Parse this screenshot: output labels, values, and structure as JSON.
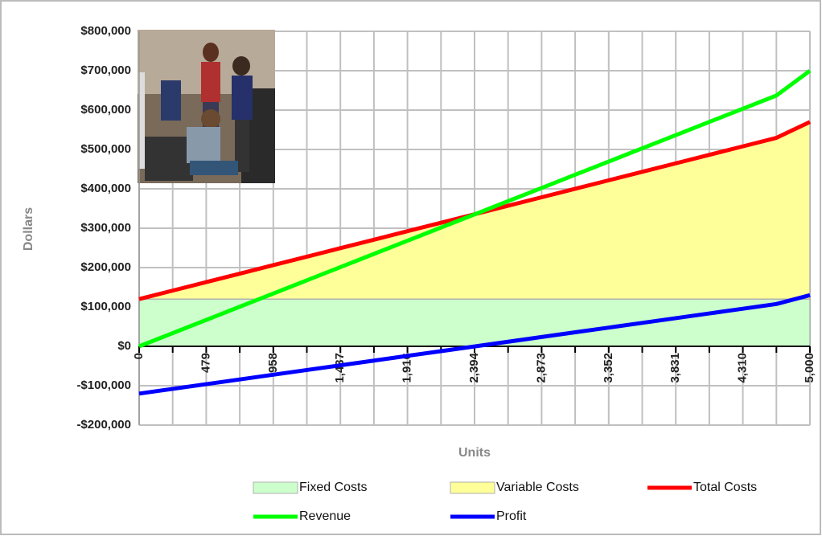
{
  "chart_data": {
    "type": "line",
    "stacked_areas": true,
    "y_axis_title": "Dollars",
    "x_axis_title": "Units",
    "categories": [
      "0",
      null,
      "479",
      null,
      "958",
      null,
      "1,437",
      null,
      "1,916",
      null,
      "2,394",
      null,
      "2,873",
      null,
      "3,352",
      null,
      "3,831",
      null,
      "4,310",
      null,
      "5,000"
    ],
    "ylim": [
      -200000,
      800000
    ],
    "yticks": [
      {
        "value": -200000,
        "label": "-$200,000"
      },
      {
        "value": -100000,
        "label": "-$100,000"
      },
      {
        "value": 0,
        "label": "$0"
      },
      {
        "value": 100000,
        "label": "$100,000"
      },
      {
        "value": 200000,
        "label": "$200,000"
      },
      {
        "value": 300000,
        "label": "$300,000"
      },
      {
        "value": 400000,
        "label": "$400,000"
      },
      {
        "value": 500000,
        "label": "$500,000"
      },
      {
        "value": 600000,
        "label": "$600,000"
      },
      {
        "value": 700000,
        "label": "$700,000"
      },
      {
        "value": 800000,
        "label": "$800,000"
      }
    ],
    "grid": true,
    "series": [
      {
        "name": "Fixed Costs",
        "kind": "area",
        "color": "#ccffcc",
        "values": [
          120000,
          120000,
          120000,
          120000,
          120000,
          120000,
          120000,
          120000,
          120000,
          120000,
          120000,
          120000,
          120000,
          120000,
          120000,
          120000,
          120000,
          120000,
          120000,
          120000,
          120000
        ]
      },
      {
        "name": "Variable Costs",
        "kind": "area",
        "color": "#ffff99",
        "values": [
          0,
          21555,
          43110,
          64665,
          86220,
          107775,
          129330,
          150885,
          172440,
          193995,
          215460,
          237060,
          258570,
          280170,
          301680,
          323280,
          344790,
          366390,
          387900,
          409500,
          450000
        ]
      },
      {
        "name": "Total Costs",
        "kind": "line",
        "color": "#ff0000",
        "values": [
          120000,
          141555,
          163110,
          184665,
          206220,
          227775,
          249330,
          270885,
          292440,
          313995,
          335460,
          357060,
          378570,
          400170,
          421680,
          443280,
          464790,
          486390,
          507900,
          529500,
          570000
        ]
      },
      {
        "name": "Revenue",
        "kind": "line",
        "color": "#00ff00",
        "values": [
          0,
          33530,
          67060,
          100590,
          134120,
          167650,
          201180,
          234710,
          268240,
          301770,
          335160,
          368760,
          402220,
          435820,
          469280,
          502880,
          536340,
          569940,
          603400,
          637000,
          700000
        ]
      },
      {
        "name": "Profit",
        "kind": "line",
        "color": "#0000ff",
        "values": [
          -120000,
          -108025,
          -96050,
          -84075,
          -72100,
          -60125,
          -48150,
          -36175,
          -24200,
          -12225,
          -280,
          11700,
          23650,
          35650,
          47600,
          59600,
          71550,
          83550,
          95500,
          107500,
          130000
        ]
      }
    ]
  }
}
